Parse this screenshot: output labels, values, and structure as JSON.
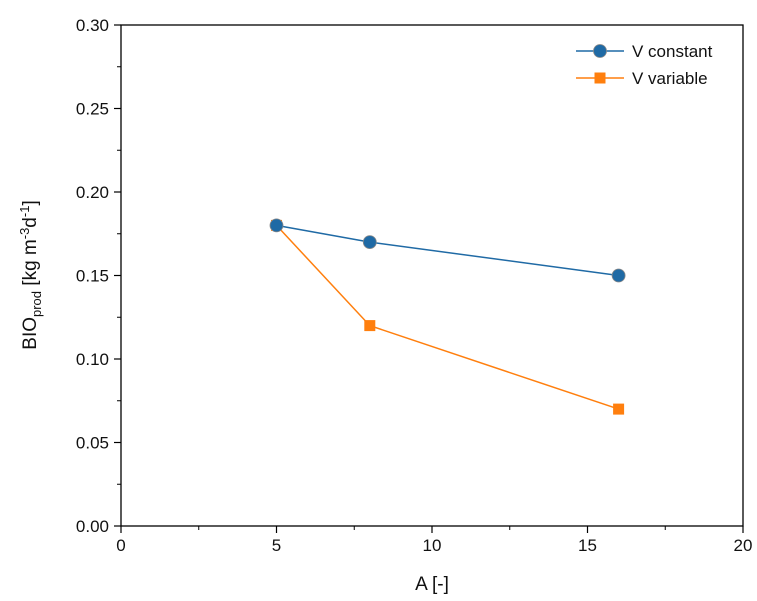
{
  "chart_data": {
    "type": "line",
    "xlabel": "A [-]",
    "ylabel": {
      "main": "BIO",
      "sub": "prod",
      "units_prefix": " [kg m",
      "exp1": "-3",
      "mid": "d",
      "exp2": "-1",
      "suffix": "]"
    },
    "xlim": [
      0,
      20
    ],
    "ylim": [
      0,
      0.3
    ],
    "xticks": [
      0,
      5,
      10,
      15,
      20
    ],
    "xtick_labels": [
      "0",
      "5",
      "10",
      "15",
      "20"
    ],
    "yticks": [
      0,
      0.05,
      0.1,
      0.15,
      0.2,
      0.25,
      0.3
    ],
    "ytick_labels": [
      "0.00",
      "0.05",
      "0.10",
      "0.15",
      "0.20",
      "0.25",
      "0.30"
    ],
    "grid": false,
    "legend_position": "top-right",
    "series": [
      {
        "name": "V constant",
        "marker": "circle",
        "color": "#1f6aa5",
        "x": [
          5,
          8,
          16
        ],
        "y": [
          0.18,
          0.17,
          0.15
        ]
      },
      {
        "name": "V variable",
        "marker": "square",
        "color": "#ff7f0e",
        "x": [
          5,
          8,
          16
        ],
        "y": [
          0.18,
          0.12,
          0.07
        ]
      }
    ]
  }
}
